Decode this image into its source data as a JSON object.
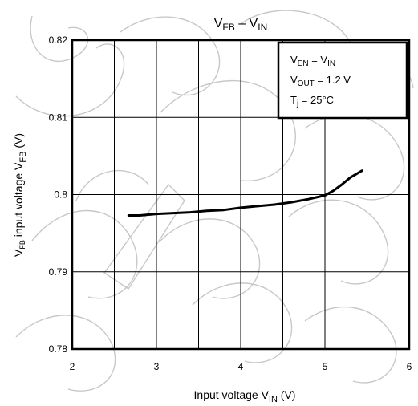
{
  "chart_data": {
    "type": "line",
    "title": {
      "main": "V",
      "main_sub": "FB",
      "sep": " – V",
      "sep_sub": "IN"
    },
    "xlabel": {
      "text": "Input voltage   V",
      "sub": "IN",
      "unit": "   (V)"
    },
    "ylabel": {
      "pre": "V",
      "pre_sub": "FB",
      "mid": " input voltage   V",
      "mid_sub": "FB",
      "unit": "   (V)"
    },
    "xlim": [
      2,
      6
    ],
    "ylim": [
      0.78,
      0.82
    ],
    "x_ticks": [
      2,
      3,
      4,
      5,
      6
    ],
    "x_tick_labels": [
      "2",
      "3",
      "4",
      "5",
      "6"
    ],
    "y_ticks": [
      0.78,
      0.79,
      0.8,
      0.81,
      0.82
    ],
    "y_tick_labels": [
      "0.78",
      "0.79",
      "0.8",
      "0.81",
      "0.82"
    ],
    "x_minor_step": 0.5,
    "grid": true,
    "legend_placement": "top-right",
    "conditions": [
      {
        "pre": "V",
        "pre_sub": "EN",
        "post": " = V",
        "post_sub": "IN",
        "tail": ""
      },
      {
        "pre": "V",
        "pre_sub": "OUT",
        "post": " = 1.2 V",
        "post_sub": "",
        "tail": ""
      },
      {
        "pre": "T",
        "pre_sub": "j",
        "post": " = 25°C",
        "post_sub": "",
        "tail": ""
      }
    ],
    "series": [
      {
        "x": [
          2.67,
          2.8,
          3.0,
          3.2,
          3.4,
          3.6,
          3.8,
          4.0,
          4.2,
          4.4,
          4.6,
          4.8,
          5.0,
          5.1,
          5.2,
          5.3,
          5.44
        ],
        "y": [
          0.7973,
          0.7973,
          0.7975,
          0.7976,
          0.7977,
          0.7979,
          0.798,
          0.7983,
          0.7985,
          0.7987,
          0.799,
          0.7994,
          0.7999,
          0.8005,
          0.8013,
          0.8022,
          0.8031
        ]
      }
    ],
    "line_color": "#000000",
    "grid_color": "#000000",
    "watermark_color": "#c8c8c8"
  }
}
